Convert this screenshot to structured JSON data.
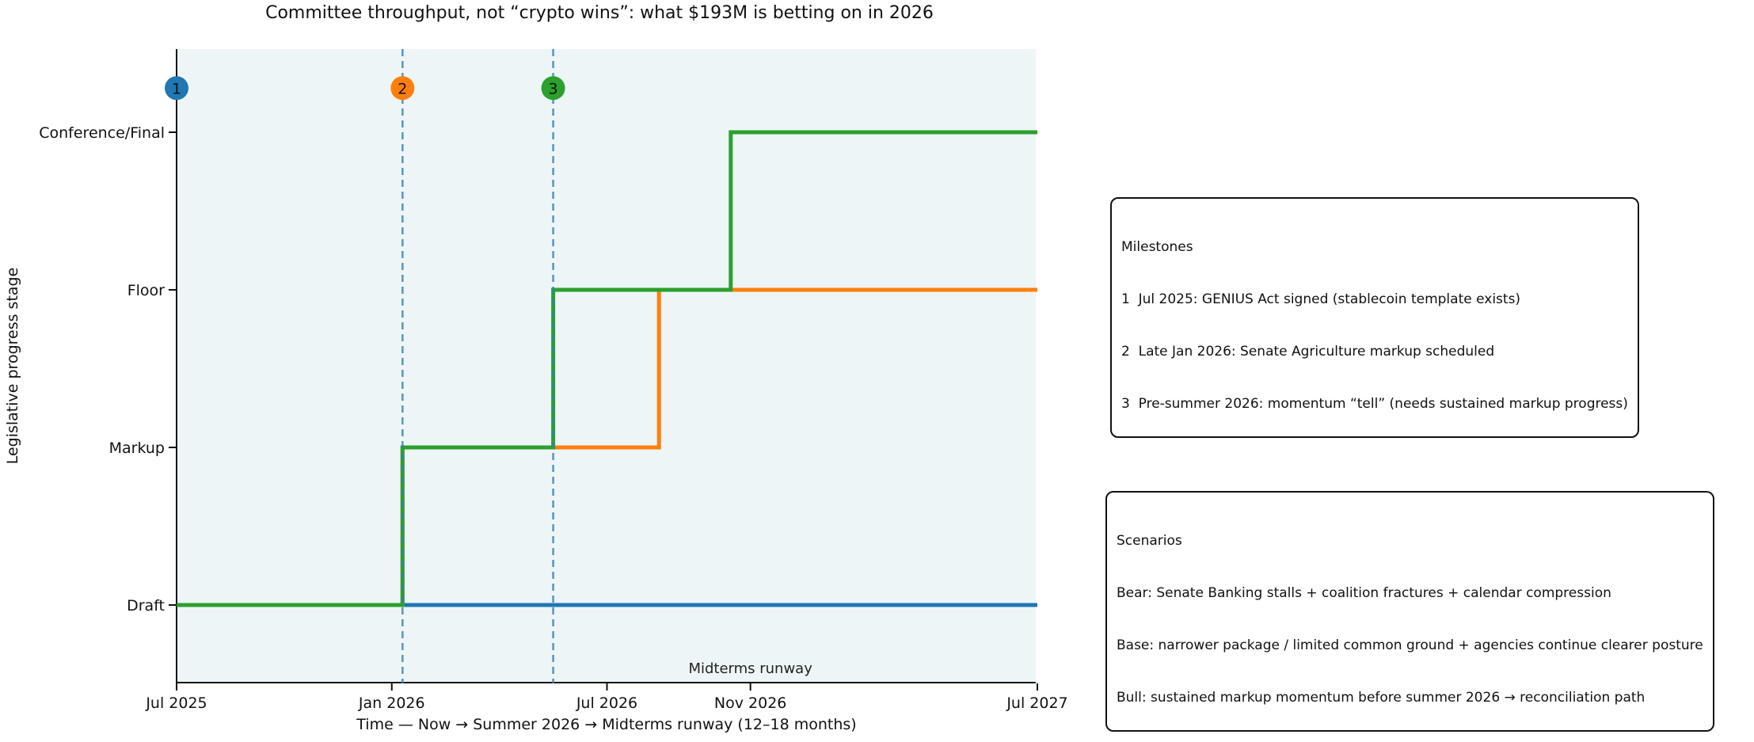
{
  "title": "Committee throughput, not “crypto wins”: what $193M is betting on in 2026",
  "axes": {
    "xlabel": "Time — Now → Summer 2026 → Midterms runway (12–18 months)",
    "ylabel": "Legislative progress stage",
    "x_ticks": [
      {
        "label": "Jul 2025",
        "m": 0
      },
      {
        "label": "Jan 2026",
        "m": 6
      },
      {
        "label": "Jul 2026",
        "m": 12
      },
      {
        "label": "Nov 2026",
        "m": 16
      },
      {
        "label": "Jul 2027",
        "m": 24
      }
    ],
    "x_range_months": [
      0,
      24
    ],
    "x_unit": "months since Jul 2025",
    "stages": [
      "Draft",
      "Markup",
      "Floor",
      "Conference/Final"
    ],
    "grid": false,
    "legend": "none",
    "plot_bg_color": "#edf5f7"
  },
  "chart_data": {
    "type": "line",
    "step": true,
    "title": "Committee throughput, not “crypto wins”: what $193M is betting on in 2026",
    "xlabel": "Time — Now → Summer 2026 → Midterms runway (12–18 months)",
    "ylabel": "Legislative progress stage",
    "y_categories": [
      "Draft",
      "Markup",
      "Floor",
      "Conference/Final"
    ],
    "series": [
      {
        "name": "Bear",
        "color": "#1f77b4",
        "points_m_stage": [
          [
            0,
            0
          ],
          [
            24,
            0
          ]
        ]
      },
      {
        "name": "Base",
        "color": "#ff7f0e",
        "points_m_stage": [
          [
            0,
            0
          ],
          [
            6.3,
            0
          ],
          [
            6.3,
            1
          ],
          [
            13.45,
            1
          ],
          [
            13.45,
            2
          ],
          [
            24,
            2
          ]
        ]
      },
      {
        "name": "Bull",
        "color": "#2ca02c",
        "points_m_stage": [
          [
            0,
            0
          ],
          [
            6.3,
            0
          ],
          [
            6.3,
            1
          ],
          [
            10.5,
            1
          ],
          [
            10.5,
            2
          ],
          [
            15.45,
            2
          ],
          [
            15.45,
            3
          ],
          [
            24,
            3
          ]
        ]
      }
    ],
    "vlines": [
      {
        "m": 6.3,
        "style": "dashed",
        "color": "#2f7fb5"
      },
      {
        "m": 10.5,
        "style": "dashed",
        "color": "#2f7fb5"
      }
    ],
    "markers": [
      {
        "label": "1",
        "m": 0,
        "stage_y": 3.28,
        "color": "#1f77b4"
      },
      {
        "label": "2",
        "m": 6.3,
        "stage_y": 3.28,
        "color": "#ff7f0e"
      },
      {
        "label": "3",
        "m": 10.5,
        "stage_y": 3.28,
        "color": "#2ca02c"
      }
    ],
    "annotation": {
      "label": "Midterms runway",
      "m": 16
    }
  },
  "milestones_box": {
    "title": "Milestones",
    "items": [
      "1  Jul 2025: GENIUS Act signed (stablecoin template exists)",
      "2  Late Jan 2026: Senate Agriculture markup scheduled",
      "3  Pre-summer 2026: momentum “tell” (needs sustained markup progress)"
    ]
  },
  "scenarios_box": {
    "title": "Scenarios",
    "items": [
      "Bear: Senate Banking stalls + coalition fractures + calendar compression",
      "Base: narrower package / limited common ground + agencies continue clearer posture",
      "Bull: sustained markup momentum before summer 2026 → reconciliation path"
    ]
  },
  "colors": {
    "bear_blue": "#1f77b4",
    "base_orange": "#ff7f0e",
    "bull_green": "#2ca02c",
    "vline_blue": "#2f7fb5",
    "plot_bg": "#edf5f7",
    "text": "#111111"
  }
}
